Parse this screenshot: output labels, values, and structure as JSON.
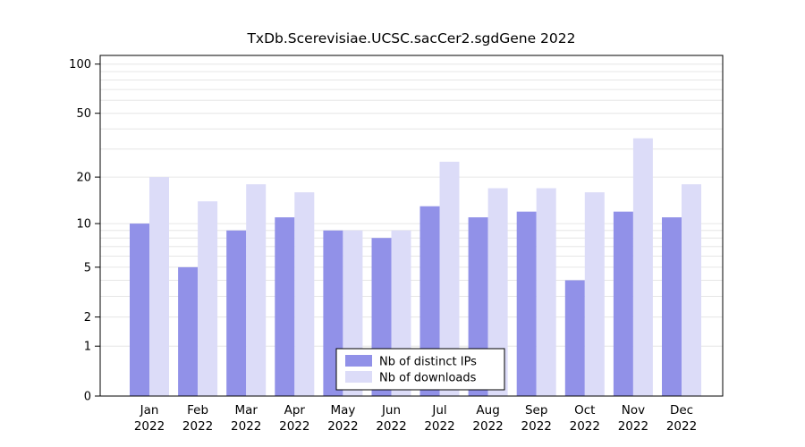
{
  "chart_data": {
    "type": "bar",
    "title": "TxDb.Scerevisiae.UCSC.sacCer2.sgdGene 2022",
    "categories": [
      "Jan",
      "Feb",
      "Mar",
      "Apr",
      "May",
      "Jun",
      "Jul",
      "Aug",
      "Sep",
      "Oct",
      "Nov",
      "Dec"
    ],
    "year": "2022",
    "series": [
      {
        "key": "distinct_ips",
        "name": "Nb of distinct IPs",
        "color": "#9191e8",
        "values": [
          10,
          5,
          9,
          11,
          9,
          8,
          13,
          11,
          12,
          4,
          12,
          11
        ]
      },
      {
        "key": "downloads",
        "name": "Nb of downloads",
        "color": "#dcdcf8",
        "values": [
          20,
          14,
          18,
          16,
          9,
          9,
          25,
          17,
          17,
          16,
          35,
          18
        ]
      }
    ],
    "yscale": "log1p",
    "yticks": [
      0,
      1,
      2,
      5,
      10,
      20,
      50,
      100
    ],
    "grid_values": [
      1,
      2,
      3,
      4,
      5,
      6,
      7,
      8,
      9,
      10,
      20,
      30,
      40,
      50,
      60,
      70,
      80,
      90,
      100
    ],
    "ylim": [
      0,
      113
    ],
    "grid": true,
    "grid_color": "#e6e6e6",
    "axis_color": "#000000",
    "legend_position": "bottom-center",
    "xlabel": "",
    "ylabel": ""
  }
}
